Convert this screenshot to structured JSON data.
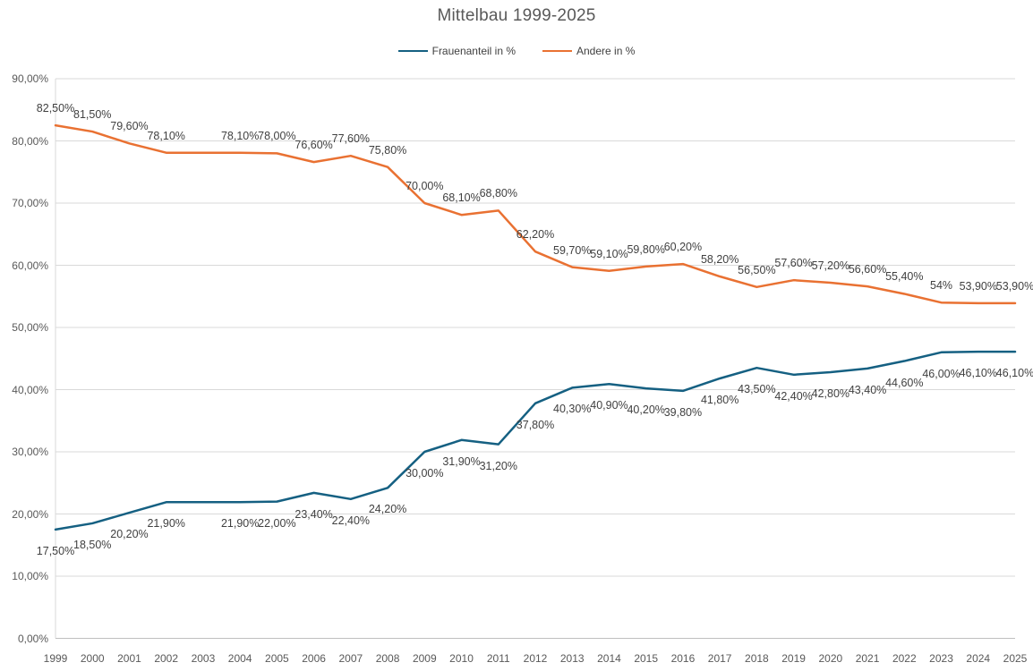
{
  "chart_data": {
    "type": "line",
    "title": "Mittelbau 1999-2025",
    "categories": [
      "1999",
      "2000",
      "2001",
      "2002",
      "2003",
      "2004",
      "2005",
      "2006",
      "2007",
      "2008",
      "2009",
      "2010",
      "2011",
      "2012",
      "2013",
      "2014",
      "2015",
      "2016",
      "2017",
      "2018",
      "2019",
      "2020",
      "2021",
      "2022",
      "2023",
      "2024",
      "2025"
    ],
    "series": [
      {
        "name": "Frauenanteil in %",
        "color": "#156082",
        "label_position": "below",
        "values": [
          17.5,
          18.5,
          20.2,
          21.9,
          21.9,
          21.9,
          22.0,
          23.4,
          22.4,
          24.2,
          30.0,
          31.9,
          31.2,
          37.8,
          40.3,
          40.9,
          40.2,
          39.8,
          41.8,
          43.5,
          42.4,
          42.8,
          43.4,
          44.6,
          46.0,
          46.1,
          46.1
        ],
        "labels": [
          "17,50%",
          "18,50%",
          "20,20%",
          "21,90%",
          "",
          "21,90%",
          "22,00%",
          "23,40%",
          "22,40%",
          "24,20%",
          "30,00%",
          "31,90%",
          "31,20%",
          "37,80%",
          "40,30%",
          "40,90%",
          "40,20%",
          "39,80%",
          "41,80%",
          "43,50%",
          "42,40%",
          "42,80%",
          "43,40%",
          "44,60%",
          "46,00%",
          "46,10%",
          "46,10%"
        ]
      },
      {
        "name": "Andere in %",
        "color": "#E97132",
        "label_position": "above",
        "values": [
          82.5,
          81.5,
          79.6,
          78.1,
          78.1,
          78.1,
          78.0,
          76.6,
          77.6,
          75.8,
          70.0,
          68.1,
          68.8,
          62.2,
          59.7,
          59.1,
          59.8,
          60.2,
          58.2,
          56.5,
          57.6,
          57.2,
          56.6,
          55.4,
          54.0,
          53.9,
          53.9
        ],
        "labels": [
          "82,50%",
          "81,50%",
          "79,60%",
          "78,10%",
          "",
          "78,10%",
          "78,00%",
          "76,60%",
          "77,60%",
          "75,80%",
          "70,00%",
          "68,10%",
          "68,80%",
          "62,20%",
          "59,70%",
          "59,10%",
          "59,80%",
          "60,20%",
          "58,20%",
          "56,50%",
          "57,60%",
          "57,20%",
          "56,60%",
          "55,40%",
          "54%",
          "53,90%",
          "53,90%"
        ]
      }
    ],
    "y_axis": {
      "min": 0,
      "max": 90,
      "step": 10,
      "tick_labels": [
        "0,00%",
        "10,00%",
        "20,00%",
        "30,00%",
        "40,00%",
        "50,00%",
        "60,00%",
        "70,00%",
        "80,00%",
        "90,00%"
      ]
    },
    "legend_position": "top",
    "grid": "horizontal",
    "colors": {
      "gridline": "#D9D9D9",
      "axis_line": "#BFBFBF",
      "tick_text": "#595959",
      "data_label_text": "#404040"
    }
  }
}
